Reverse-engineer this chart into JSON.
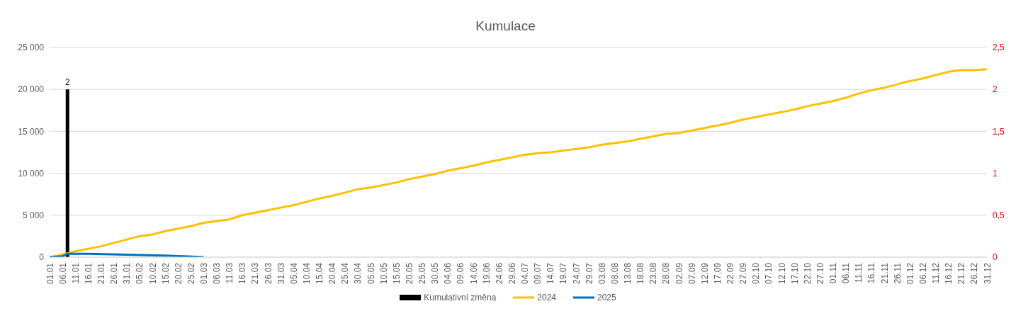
{
  "chart_data": {
    "type": "line",
    "title": "Kumulace",
    "legend": "bottom",
    "grid": "y",
    "xlim": [
      "--01-01",
      "--12-31"
    ],
    "xticks": [
      {
        "value": "--01-01",
        "label": "01.01"
      },
      {
        "value": "--01-06",
        "label": "06.01"
      },
      {
        "value": "--01-11",
        "label": "11.01"
      },
      {
        "value": "--01-16",
        "label": "16.01"
      },
      {
        "value": "--01-21",
        "label": "21.01"
      },
      {
        "value": "--01-26",
        "label": "26.01"
      },
      {
        "value": "--01-31",
        "label": "31.01"
      },
      {
        "value": "--02-05",
        "label": "05.02"
      },
      {
        "value": "--02-10",
        "label": "10.02"
      },
      {
        "value": "--02-15",
        "label": "15.02"
      },
      {
        "value": "--02-20",
        "label": "20.02"
      },
      {
        "value": "--02-25",
        "label": "25.02"
      },
      {
        "value": "--03-01",
        "label": "01.03"
      },
      {
        "value": "--03-06",
        "label": "06.03"
      },
      {
        "value": "--03-11",
        "label": "11.03"
      },
      {
        "value": "--03-16",
        "label": "16.03"
      },
      {
        "value": "--03-21",
        "label": "21.03"
      },
      {
        "value": "--03-26",
        "label": "26.03"
      },
      {
        "value": "--03-31",
        "label": "31.03"
      },
      {
        "value": "--04-05",
        "label": "05.04"
      },
      {
        "value": "--04-10",
        "label": "10.04"
      },
      {
        "value": "--04-15",
        "label": "15.04"
      },
      {
        "value": "--04-20",
        "label": "20.04"
      },
      {
        "value": "--04-25",
        "label": "25.04"
      },
      {
        "value": "--04-30",
        "label": "30.04"
      },
      {
        "value": "--05-05",
        "label": "05.05"
      },
      {
        "value": "--05-10",
        "label": "10.05"
      },
      {
        "value": "--05-15",
        "label": "15.05"
      },
      {
        "value": "--05-20",
        "label": "20.05"
      },
      {
        "value": "--05-25",
        "label": "25.05"
      },
      {
        "value": "--05-30",
        "label": "30.05"
      },
      {
        "value": "--06-04",
        "label": "04.06"
      },
      {
        "value": "--06-09",
        "label": "09.06"
      },
      {
        "value": "--06-14",
        "label": "14.06"
      },
      {
        "value": "--06-19",
        "label": "19.06"
      },
      {
        "value": "--06-24",
        "label": "24.06"
      },
      {
        "value": "--06-29",
        "label": "29.06"
      },
      {
        "value": "--07-04",
        "label": "04.07"
      },
      {
        "value": "--07-09",
        "label": "09.07"
      },
      {
        "value": "--07-14",
        "label": "14.07"
      },
      {
        "value": "--07-19",
        "label": "19.07"
      },
      {
        "value": "--07-24",
        "label": "24.07"
      },
      {
        "value": "--07-29",
        "label": "29.07"
      },
      {
        "value": "--08-03",
        "label": "03.08"
      },
      {
        "value": "--08-08",
        "label": "08.08"
      },
      {
        "value": "--08-13",
        "label": "13.08"
      },
      {
        "value": "--08-18",
        "label": "18.08"
      },
      {
        "value": "--08-23",
        "label": "23.08"
      },
      {
        "value": "--08-28",
        "label": "28.08"
      },
      {
        "value": "--09-02",
        "label": "02.09"
      },
      {
        "value": "--09-07",
        "label": "07.09"
      },
      {
        "value": "--09-12",
        "label": "12.09"
      },
      {
        "value": "--09-17",
        "label": "17.09"
      },
      {
        "value": "--09-22",
        "label": "22.09"
      },
      {
        "value": "--09-27",
        "label": "27.09"
      },
      {
        "value": "--10-02",
        "label": "02.10"
      },
      {
        "value": "--10-07",
        "label": "07.10"
      },
      {
        "value": "--10-12",
        "label": "12.10"
      },
      {
        "value": "--10-17",
        "label": "17.10"
      },
      {
        "value": "--10-22",
        "label": "22.10"
      },
      {
        "value": "--10-27",
        "label": "27.10"
      },
      {
        "value": "--11-01",
        "label": "01.11"
      },
      {
        "value": "--11-06",
        "label": "06.11"
      },
      {
        "value": "--11-11",
        "label": "11.11"
      },
      {
        "value": "--11-16",
        "label": "16.11"
      },
      {
        "value": "--11-21",
        "label": "21.11"
      },
      {
        "value": "--11-26",
        "label": "26.11"
      },
      {
        "value": "--12-01",
        "label": "01.12"
      },
      {
        "value": "--12-06",
        "label": "06.12"
      },
      {
        "value": "--12-11",
        "label": "11.12"
      },
      {
        "value": "--12-16",
        "label": "16.12"
      },
      {
        "value": "--12-21",
        "label": "21.12"
      },
      {
        "value": "--12-26",
        "label": "26.12"
      },
      {
        "value": "--12-31",
        "label": "31.12"
      }
    ],
    "ylim": [
      0,
      25000
    ],
    "yticks": [
      0,
      {
        "value": 5000,
        "label": "5 000"
      },
      {
        "value": 10000,
        "label": "10 000"
      },
      {
        "value": 15000,
        "label": "15 000"
      },
      {
        "value": 20000,
        "label": "20 000"
      },
      {
        "value": 25000,
        "label": "25 000"
      }
    ],
    "y2lim": [
      0,
      2.5
    ],
    "y2ticks": [
      0,
      {
        "value": 0.5,
        "label": "0,5"
      },
      1,
      {
        "value": 1.5,
        "label": "1,5"
      },
      2,
      {
        "value": 2.5,
        "label": "2,5"
      }
    ],
    "series": [
      {
        "name": "Kumulativní změna",
        "type": "bar",
        "axis": "y2",
        "color": "#000000",
        "x": [
          "--01-08"
        ],
        "values": [
          2
        ],
        "value_labels": [
          "2"
        ]
      },
      {
        "name": "2024",
        "color": "#ffc000",
        "x": [
          "--01-01",
          "--01-06",
          "--01-11",
          "--01-16",
          "--01-21",
          "--01-26",
          "--01-31",
          "--02-05",
          "--02-10",
          "--02-15",
          "--02-20",
          "--02-25",
          "--03-01",
          "--03-06",
          "--03-11",
          "--03-16",
          "--03-21",
          "--03-26",
          "--03-31",
          "--04-05",
          "--04-10",
          "--04-15",
          "--04-20",
          "--04-25",
          "--04-30",
          "--05-05",
          "--05-10",
          "--05-15",
          "--05-20",
          "--05-25",
          "--05-30",
          "--06-04",
          "--06-09",
          "--06-14",
          "--06-19",
          "--06-24",
          "--06-29",
          "--07-04",
          "--07-09",
          "--07-14",
          "--07-19",
          "--07-24",
          "--07-29",
          "--08-03",
          "--08-08",
          "--08-13",
          "--08-18",
          "--08-23",
          "--08-28",
          "--09-02",
          "--09-07",
          "--09-12",
          "--09-17",
          "--09-22",
          "--09-27",
          "--10-02",
          "--10-07",
          "--10-12",
          "--10-17",
          "--10-22",
          "--10-27",
          "--11-01",
          "--11-06",
          "--11-11",
          "--11-16",
          "--11-21",
          "--11-26",
          "--12-01",
          "--12-06",
          "--12-11",
          "--12-16",
          "--12-21",
          "--12-26",
          "--12-31"
        ],
        "values": [
          0,
          300,
          700,
          1000,
          1300,
          1700,
          2100,
          2500,
          2700,
          3100,
          3400,
          3700,
          4100,
          4300,
          4500,
          5000,
          5300,
          5600,
          5900,
          6200,
          6600,
          7000,
          7300,
          7700,
          8100,
          8300,
          8600,
          8900,
          9300,
          9600,
          9900,
          10300,
          10600,
          10900,
          11300,
          11600,
          11900,
          12200,
          12400,
          12500,
          12700,
          12900,
          13100,
          13400,
          13600,
          13800,
          14100,
          14400,
          14700,
          14800,
          15100,
          15400,
          15700,
          16000,
          16400,
          16700,
          17000,
          17300,
          17600,
          18000,
          18300,
          18600,
          19000,
          19500,
          19900,
          20200,
          20600,
          21000,
          21300,
          21700,
          22100,
          22300,
          22300,
          22400
        ]
      },
      {
        "name": "2025",
        "color": "#0070c0",
        "x": [
          "--01-01",
          "--01-06",
          "--01-08",
          "--01-16",
          "--01-31",
          "--02-15",
          "--03-01"
        ],
        "values": [
          0,
          100,
          400,
          400,
          300,
          200,
          0
        ]
      }
    ]
  }
}
